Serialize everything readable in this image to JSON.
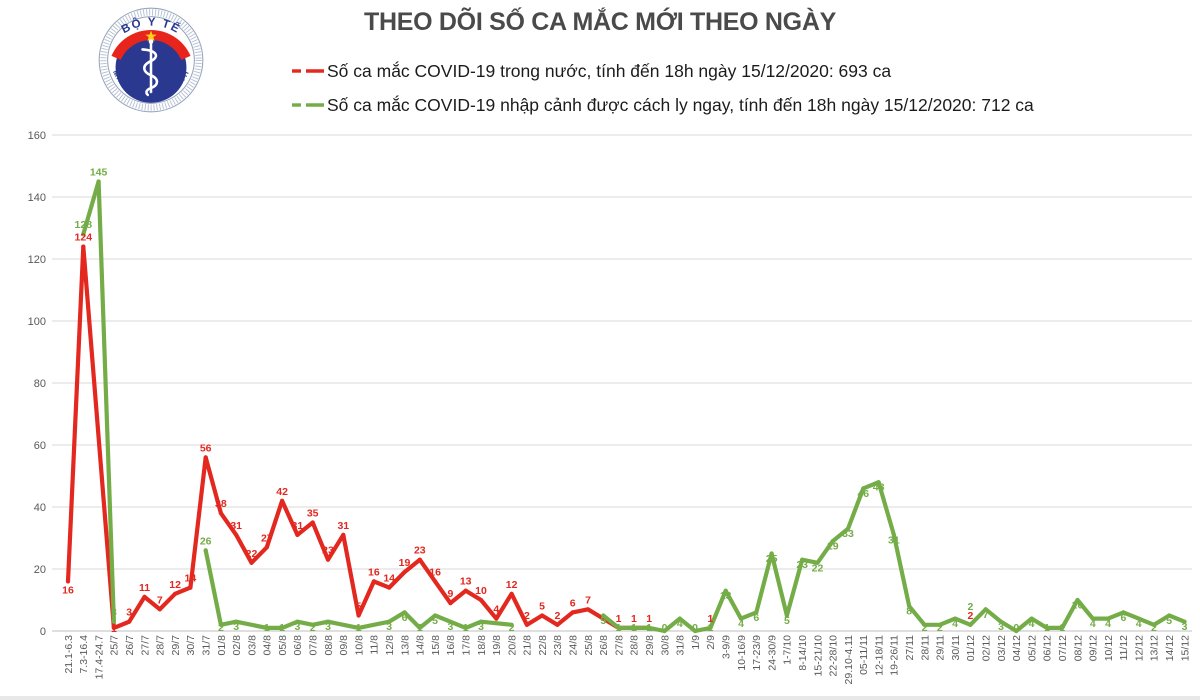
{
  "header": {
    "title": "THEO DÕI SỐ CA MẮC MỚI THEO NGÀY"
  },
  "logo": {
    "top_text": "BỘ Y TẾ",
    "bottom_text": "MINISTRY OF HEALTH"
  },
  "legend": [
    {
      "label": "Số ca mắc COVID-19 trong nước, tính đến 18h ngày 15/12/2020: 693 ca",
      "color": "#e2281f"
    },
    {
      "label": "Số ca mắc COVID-19 nhập cảnh được cách ly ngay, tính đến 18h ngày 15/12/2020: 712 ca",
      "color": "#74ad48"
    }
  ],
  "colors": {
    "red": "#e2281f",
    "green": "#74ad48",
    "grid": "#d9d9d9",
    "axis": "#bfbfbf",
    "axis_text": "#595959",
    "title_text": "#4a4a4a",
    "logo_navy": "#2a3890",
    "logo_red": "#e8251d",
    "logo_star": "#fcd116",
    "logo_ring": "#97a5bd"
  },
  "chart_data": {
    "type": "line",
    "title": "THEO DÕI SỐ CA MẮC MỚI THEO NGÀY",
    "xlabel": "",
    "ylabel": "",
    "ylim": [
      0,
      160
    ],
    "y_ticks": [
      0,
      20,
      40,
      60,
      80,
      100,
      120,
      140,
      160
    ],
    "grid": true,
    "legend_position": "top",
    "categories": [
      "21.1-6.3",
      "7.3-16.4",
      "17.4-24.7",
      "25/7",
      "26/7",
      "27/7",
      "28/7",
      "29/7",
      "30/7",
      "31/7",
      "01/8",
      "02/8",
      "03/8",
      "04/8",
      "05/8",
      "06/8",
      "07/8",
      "08/8",
      "09/8",
      "10/8",
      "11/8",
      "12/8",
      "13/8",
      "14/8",
      "15/8",
      "16/8",
      "17/8",
      "18/8",
      "19/8",
      "20/8",
      "21/8",
      "22/8",
      "23/8",
      "24/8",
      "25/8",
      "26/8",
      "27/8",
      "28/8",
      "29/8",
      "30/8",
      "31/8",
      "1/9",
      "2/9",
      "3-9/9",
      "10-16/9",
      "17-23/9",
      "24-30/9",
      "1-7/10",
      "8-14/10",
      "15-21/10",
      "22-28/10",
      "29.10-4.11",
      "05-11/11",
      "12-18/11",
      "19-26/11",
      "27/11",
      "28/11",
      "29/11",
      "30/11",
      "01/12",
      "02/12",
      "03/12",
      "04/12",
      "05/12",
      "06/12",
      "07/12",
      "08/12",
      "09/12",
      "10/12",
      "11/12",
      "12/12",
      "13/12",
      "14/12",
      "15/12"
    ],
    "series": [
      {
        "name": "Số ca mắc COVID-19 trong nước",
        "total_label": "693 ca",
        "color": "#e2281f",
        "values": [
          16,
          124,
          null,
          1,
          3,
          11,
          7,
          12,
          14,
          56,
          38,
          31,
          22,
          27,
          42,
          31,
          35,
          23,
          31,
          5,
          16,
          14,
          19,
          23,
          16,
          9,
          13,
          10,
          4,
          12,
          2,
          5,
          2,
          6,
          7,
          null,
          1,
          1,
          1,
          null,
          null,
          null,
          1,
          null,
          null,
          null,
          null,
          null,
          null,
          null,
          null,
          null,
          null,
          null,
          null,
          null,
          null,
          null,
          null,
          2,
          null,
          null,
          null,
          null,
          null,
          null,
          null,
          null,
          null,
          null,
          null,
          null,
          null,
          null
        ]
      },
      {
        "name": "Số ca mắc COVID-19 nhập cảnh được cách ly ngay",
        "total_label": "712 ca",
        "color": "#74ad48",
        "values": [
          null,
          128,
          145,
          3,
          null,
          null,
          null,
          null,
          null,
          26,
          2,
          3,
          null,
          1,
          1,
          3,
          2,
          3,
          null,
          1,
          null,
          3,
          6,
          1,
          5,
          3,
          1,
          3,
          null,
          2,
          null,
          null,
          null,
          null,
          null,
          5,
          1,
          1,
          1,
          0,
          4,
          0,
          1,
          13,
          4,
          6,
          25,
          5,
          23,
          22,
          29,
          33,
          46,
          48,
          31,
          8,
          2,
          2,
          4,
          2,
          7,
          3,
          0,
          4,
          1,
          1,
          10,
          4,
          4,
          6,
          4,
          2,
          5,
          3
        ]
      }
    ],
    "label_overrides": {
      "red_below": [
        0,
        3
      ],
      "green_above": [
        1,
        2,
        3,
        9
      ],
      "green_above_far": [
        59
      ]
    }
  }
}
